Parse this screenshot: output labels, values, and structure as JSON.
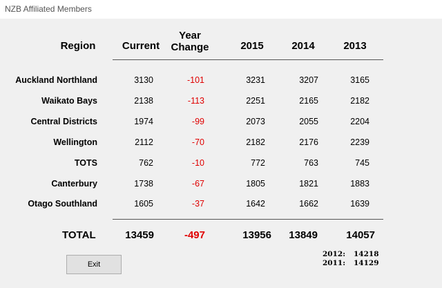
{
  "window": {
    "title": "NZB Affiliated Members"
  },
  "headers": {
    "region": "Region",
    "current": "Current",
    "year_change_1": "Year",
    "year_change_2": "Change",
    "y2015": "2015",
    "y2014": "2014",
    "y2013": "2013"
  },
  "rows": [
    {
      "region": "Auckland Northland",
      "current": "3130",
      "change": "-101",
      "y2015": "3231",
      "y2014": "3207",
      "y2013": "3165"
    },
    {
      "region": "Waikato Bays",
      "current": "2138",
      "change": "-113",
      "y2015": "2251",
      "y2014": "2165",
      "y2013": "2182"
    },
    {
      "region": "Central Districts",
      "current": "1974",
      "change": "-99",
      "y2015": "2073",
      "y2014": "2055",
      "y2013": "2204"
    },
    {
      "region": "Wellington",
      "current": "2112",
      "change": "-70",
      "y2015": "2182",
      "y2014": "2176",
      "y2013": "2239"
    },
    {
      "region": "TOTS",
      "current": "762",
      "change": "-10",
      "y2015": "772",
      "y2014": "763",
      "y2013": "745"
    },
    {
      "region": "Canterbury",
      "current": "1738",
      "change": "-67",
      "y2015": "1805",
      "y2014": "1821",
      "y2013": "1883"
    },
    {
      "region": "Otago Southland",
      "current": "1605",
      "change": "-37",
      "y2015": "1642",
      "y2014": "1662",
      "y2013": "1639"
    }
  ],
  "total": {
    "label": "TOTAL",
    "current": "13459",
    "change": "-497",
    "y2015": "13956",
    "y2014": "13849",
    "y2013": "14057"
  },
  "prior_years": [
    {
      "label": "2012:",
      "value": "14218"
    },
    {
      "label": "2011:",
      "value": "14129"
    }
  ],
  "buttons": {
    "exit": "Exit"
  },
  "colors": {
    "negative": "#e00000",
    "background": "#f0f0f0"
  }
}
